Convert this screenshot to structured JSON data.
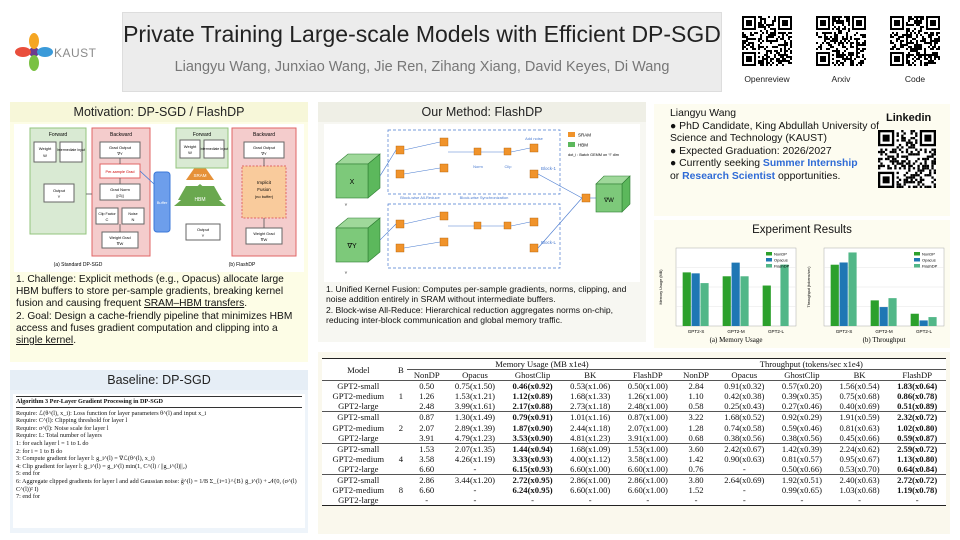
{
  "header": {
    "title": "Private Training Large-scale Models with Efficient DP-SGD",
    "authors": "Liangyu Wang, Junxiao Wang, Jie Ren, Zihang Xiang, David Keyes, Di Wang",
    "logo_text": "KAUST",
    "qr_labels": [
      "Openreview",
      "Arxiv",
      "Code"
    ]
  },
  "motivation": {
    "title": "Motivation: DP-SGD / FlashDP",
    "diagram": {
      "left_caption": "(a) Standard DP-SGD",
      "right_caption": "(b) FlashDP",
      "forward": "Forward",
      "backward": "Backward",
      "weight": "Weight",
      "weight_sym": "W",
      "intermediate": "Intermediate Input",
      "output": "Output",
      "output_sym": "Y",
      "grad_output": "Grad Output",
      "grad_output_sym": "∇Y",
      "per_sample": "Per-sample Grad",
      "grad_norm": "Grad Norm",
      "grad_norm_sym": "||G||",
      "clip_factor": "Clip Factor",
      "clip_sym": "C",
      "noise": "Noise",
      "noise_sym": "N",
      "weight_grad": "Weight Grad",
      "weight_grad_sym": "∇W",
      "buffer": "Buffer",
      "implicit_fusion": [
        "Implicit",
        "Fusion",
        "(no buffer)"
      ],
      "sram": "SRAM",
      "hbm": "HBM"
    },
    "points": [
      {
        "before": "1. Challenge: Explicit methods (e.g., Opacus) allocate large HBM buffers to store per-sample gradients, breaking kernel fusion and causing frequent ",
        "underlined": "SRAM–HBM transfers",
        "after": "."
      },
      {
        "before": "2. Goal: Design a cache-friendly pipeline that minimizes HBM access and fuses gradient computation and clipping into a ",
        "underlined": "single kernel",
        "after": "."
      }
    ]
  },
  "baseline": {
    "title": "Baseline: DP-SGD",
    "algorithm_title": "Algorithm 3 Per-Layer Gradient Processing in DP-SGD",
    "lines": [
      "Require: ℒ(θ^(l), x_i): Loss function for layer parameters θ^(l) and input x_i",
      "Require: C^(l): Clipping threshold for layer l",
      "Require: σ^(l): Noise scale for layer l",
      "Require: L: Total number of layers",
      "1:  for each layer l = 1 to L do",
      "2:      for i = 1 to B do",
      "3:          Compute gradient for layer l: g_i^(l) = ∇ℒ(θ^(l), x_i)",
      "4:          Clip gradient for layer l: ḡ_i^(l) = g_i^(l) min(1, C^(l) / ||g_i^(l)||₂)",
      "5:      end for",
      "6:      Aggregate clipped gradients for layer l and add Gaussian noise: g̃^(l) = 1/B Σ_{i=1}^{B} ḡ_i^(l) + 𝒩(0, (σ^(l) C^(l))² I)",
      "7:  end for"
    ]
  },
  "method": {
    "title": "Our Method: FlashDP",
    "diagram": {
      "x_label": "X",
      "dy_label": "∇Y",
      "dw_label": "∇W",
      "y_label": "Y",
      "legend": [
        "SRAM",
        "HBM",
        "dot_i : Batch GEMM on “i” dim"
      ],
      "block1": "Block-1",
      "blockL": "Block-L",
      "blockwise_allreduce": "Block-wise All-Reduce",
      "blockwise_sync": "Block-wise Synchronization",
      "norm": "Norm",
      "clip": "Clip",
      "add_noise": "Add noise"
    },
    "points": [
      "1. Unified Kernel Fusion: Computes per-sample gradients, norms, clipping, and noise addition entirely in SRAM without intermediate buffers.",
      "2. Block-wise All-Reduce: Hierarchical reduction aggregates norms on-chip, reducing inter-block communication and global memory traffic."
    ]
  },
  "author": {
    "name": "Liangyu Wang",
    "bullets": [
      "● PhD Candidate, King Abdullah University of Science and Technology (KAUST)",
      "● Expected Graduation: 2026/2027"
    ],
    "seeking_prefix": "● Currently seeking ",
    "seeking_role1": "Summer Internship",
    "seeking_or": "or ",
    "seeking_role2": "Research Scientist",
    "seeking_suffix": " opportunities.",
    "linkedin": "Linkedin"
  },
  "results": {
    "title": "Experiment Results"
  },
  "chart_data": [
    {
      "type": "bar",
      "title": "",
      "caption": "(a) Memory Usage",
      "ylabel": "Memory Usage (MB)",
      "categories": [
        "GPT2-S",
        "GPT2-M",
        "GPT2-L"
      ],
      "series": [
        {
          "name": "NonDP",
          "color": "#2ca02c",
          "values": [
            5500,
            5100,
            4150
          ]
        },
        {
          "name": "Opacus",
          "color": "#1f77b4",
          "values": [
            5400,
            6500,
            null
          ]
        },
        {
          "name": "FlashDP",
          "color": "#52b788",
          "values": [
            4400,
            5100,
            6300
          ]
        }
      ],
      "ylim": [
        0,
        8000
      ],
      "legend": "top-right"
    },
    {
      "type": "bar",
      "title": "",
      "caption": "(b) Throughput",
      "ylabel": "Throughput (tokens/sec)",
      "categories": [
        "GPT2-S",
        "GPT2-M",
        "GPT2-L"
      ],
      "series": [
        {
          "name": "NonDP",
          "color": "#2ca02c",
          "values": [
            5500,
            2300,
            1100
          ]
        },
        {
          "name": "Opacus",
          "color": "#1f77b4",
          "values": [
            5700,
            1700,
            500
          ]
        },
        {
          "name": "FlashDP",
          "color": "#52b788",
          "values": [
            6600,
            2500,
            800
          ]
        }
      ],
      "ylim": [
        0,
        7000
      ],
      "legend": "top-right"
    }
  ],
  "table": {
    "header_groups": {
      "model": "Model",
      "b": "B",
      "memory": "Memory Usage (MB x1e4)",
      "throughput": "Throughput (tokens/sec x1e4)"
    },
    "columns": [
      "NonDP",
      "Opacus",
      "GhostClip",
      "BK",
      "FlashDP",
      "NonDP",
      "Opacus",
      "GhostClip",
      "BK",
      "FlashDP"
    ],
    "bold_cols": [
      4,
      9
    ],
    "groups": [
      {
        "b": "1",
        "rows": [
          {
            "model": "GPT2-small",
            "cells": [
              "0.50",
              "0.75(x1.50)",
              "0.46(x0.92)",
              "0.53(x1.06)",
              "0.50(x1.00)",
              "2.84",
              "0.91(x0.32)",
              "0.57(x0.20)",
              "1.56(x0.54)",
              "1.83(x0.64)"
            ],
            "bold": [
              2,
              9
            ]
          },
          {
            "model": "GPT2-medium",
            "cells": [
              "1.26",
              "1.53(x1.21)",
              "1.12(x0.89)",
              "1.68(x1.33)",
              "1.26(x1.00)",
              "1.10",
              "0.42(x0.38)",
              "0.39(x0.35)",
              "0.75(x0.68)",
              "0.86(x0.78)"
            ],
            "bold": [
              2,
              9
            ]
          },
          {
            "model": "GPT2-large",
            "cells": [
              "2.48",
              "3.99(x1.61)",
              "2.17(x0.88)",
              "2.73(x1.18)",
              "2.48(x1.00)",
              "0.58",
              "0.25(x0.43)",
              "0.27(x0.46)",
              "0.40(x0.69)",
              "0.51(x0.89)"
            ],
            "bold": [
              2,
              9
            ]
          }
        ]
      },
      {
        "b": "2",
        "rows": [
          {
            "model": "GPT2-small",
            "cells": [
              "0.87",
              "1.30(x1.49)",
              "0.79(x0.91)",
              "1.01(x1.16)",
              "0.87(x1.00)",
              "3.22",
              "1.68(x0.52)",
              "0.92(x0.29)",
              "1.91(x0.59)",
              "2.32(x0.72)"
            ],
            "bold": [
              2,
              9
            ]
          },
          {
            "model": "GPT2-medium",
            "cells": [
              "2.07",
              "2.89(x1.39)",
              "1.87(x0.90)",
              "2.44(x1.18)",
              "2.07(x1.00)",
              "1.28",
              "0.74(x0.58)",
              "0.59(x0.46)",
              "0.81(x0.63)",
              "1.02(x0.80)"
            ],
            "bold": [
              2,
              9
            ]
          },
          {
            "model": "GPT2-large",
            "cells": [
              "3.91",
              "4.79(x1.23)",
              "3.53(x0.90)",
              "4.81(x1.23)",
              "3.91(x1.00)",
              "0.68",
              "0.38(x0.56)",
              "0.38(x0.56)",
              "0.45(x0.66)",
              "0.59(x0.87)"
            ],
            "bold": [
              2,
              9
            ]
          }
        ]
      },
      {
        "b": "4",
        "rows": [
          {
            "model": "GPT2-small",
            "cells": [
              "1.53",
              "2.07(x1.35)",
              "1.44(x0.94)",
              "1.68(x1.09)",
              "1.53(x1.00)",
              "3.60",
              "2.42(x0.67)",
              "1.42(x0.39)",
              "2.24(x0.62)",
              "2.59(x0.72)"
            ],
            "bold": [
              2,
              9
            ]
          },
          {
            "model": "GPT2-medium",
            "cells": [
              "3.58",
              "4.26(x1.19)",
              "3.33(x0.93)",
              "4.00(x1.12)",
              "3.58(x1.00)",
              "1.42",
              "0.90(x0.63)",
              "0.81(x0.57)",
              "0.95(x0.67)",
              "1.13(x0.80)"
            ],
            "bold": [
              2,
              9
            ]
          },
          {
            "model": "GPT2-large",
            "cells": [
              "6.60",
              "-",
              "6.15(x0.93)",
              "6.60(x1.00)",
              "6.60(x1.00)",
              "0.76",
              "-",
              "0.50(x0.66)",
              "0.53(x0.70)",
              "0.64(x0.84)"
            ],
            "bold": [
              2,
              9
            ]
          }
        ]
      },
      {
        "b": "8",
        "rows": [
          {
            "model": "GPT2-small",
            "cells": [
              "2.86",
              "3.44(x1.20)",
              "2.72(x0.95)",
              "2.86(x1.00)",
              "2.86(x1.00)",
              "3.80",
              "2.64(x0.69)",
              "1.92(x0.51)",
              "2.40(x0.63)",
              "2.72(x0.72)"
            ],
            "bold": [
              2,
              9
            ]
          },
          {
            "model": "GPT2-medium",
            "cells": [
              "6.60",
              "-",
              "6.24(x0.95)",
              "6.60(x1.00)",
              "6.60(x1.00)",
              "1.52",
              "-",
              "0.99(x0.65)",
              "1.03(x0.68)",
              "1.19(x0.78)"
            ],
            "bold": [
              2,
              9
            ]
          },
          {
            "model": "GPT2-large",
            "cells": [
              "-",
              "-",
              "-",
              "-",
              "-",
              "-",
              "-",
              "-",
              "-",
              "-"
            ],
            "bold": []
          }
        ]
      }
    ]
  }
}
